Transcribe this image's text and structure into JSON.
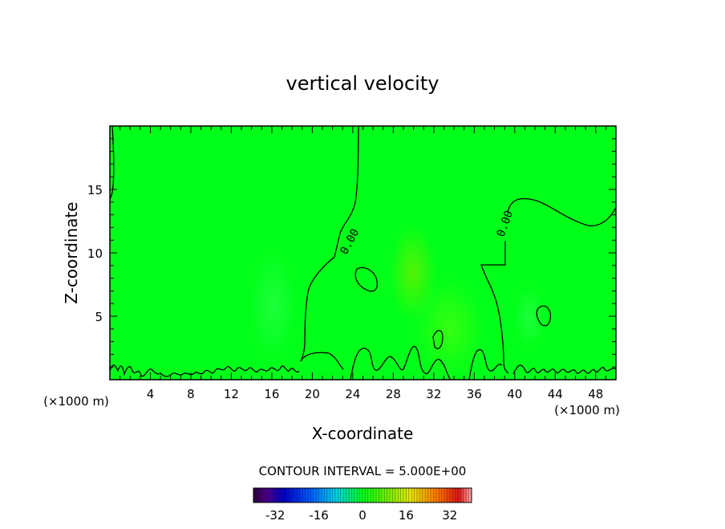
{
  "chart_data": {
    "type": "heatmap",
    "title": "vertical velocity",
    "xlabel": "X-coordinate",
    "ylabel": "Z-coordinate",
    "x_unit_left": "(×1000 m)",
    "x_unit_right": "(×1000 m)",
    "xlim": [
      0,
      50
    ],
    "ylim": [
      0,
      20
    ],
    "x_ticks": [
      "4",
      "8",
      "12",
      "16",
      "20",
      "24",
      "28",
      "32",
      "36",
      "40",
      "44",
      "48"
    ],
    "y_ticks": [
      "5",
      "10",
      "15"
    ],
    "contour_interval_text": "CONTOUR INTERVAL = 5.000E+00",
    "contour_labels": [
      "0.00",
      "0.00"
    ],
    "colorbar": {
      "min": -40,
      "max": 40,
      "tick_labels": [
        "-32",
        "-16",
        "0",
        "16",
        "32"
      ],
      "tick_values": [
        -32,
        -16,
        0,
        16,
        32
      ]
    },
    "field_color_zero": "#00ff19",
    "grid": false
  }
}
